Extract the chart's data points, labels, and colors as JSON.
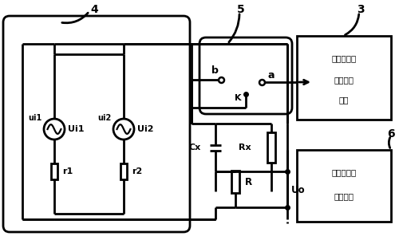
{
  "bg_color": "#ffffff",
  "line_color": "#000000",
  "lw": 2.0,
  "figsize": [
    5.0,
    3.01
  ],
  "dpi": 100,
  "box3_text": [
    "土壤含水率",
    "检测控制",
    "电路"
  ],
  "box6_text": [
    "土壤含水率",
    "检测电路"
  ]
}
